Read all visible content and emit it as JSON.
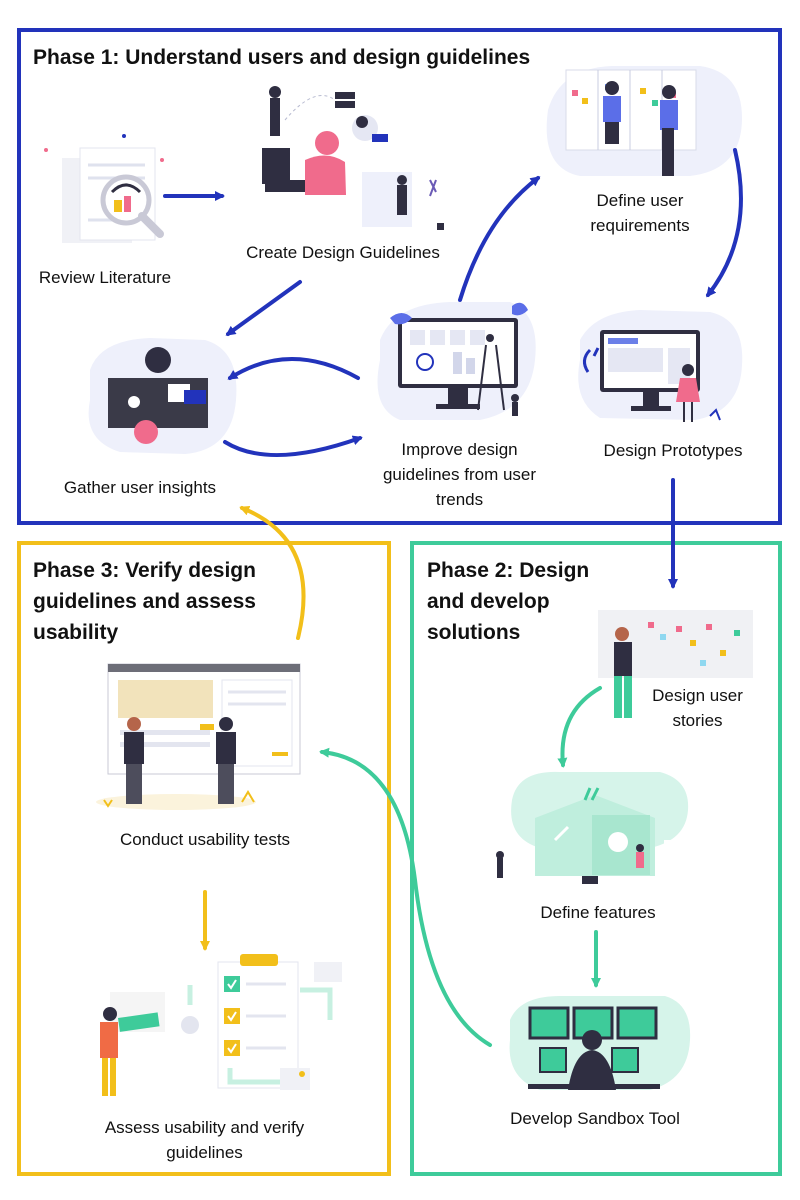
{
  "colors": {
    "phase1": "#2233bb",
    "phase2": "#3ecb9a",
    "phase3": "#f2bf1a",
    "blob": "#eef0fb",
    "pink": "#f06b8c",
    "dark": "#2f2e41"
  },
  "phase1": {
    "title": "Phase 1: Understand users and design guidelines",
    "steps": {
      "review": "Review Literature",
      "create": "Create Design Guidelines",
      "define": "Define user requirements",
      "insights": "Gather user insights",
      "improve": "Improve design guidelines from user trends",
      "prototypes": "Design Prototypes"
    }
  },
  "phase2": {
    "title": "Phase 2: Design and develop solutions",
    "steps": {
      "stories": "Design user stories",
      "features": "Define features",
      "sandbox": "Develop Sandbox Tool"
    }
  },
  "phase3": {
    "title": "Phase 3: Verify design guidelines and assess usability",
    "steps": {
      "usability": "Conduct usability tests",
      "assess": "Assess usability and verify guidelines"
    }
  },
  "illustrations": {
    "review": "literature-search-illustration",
    "create": "designer-at-desk-illustration",
    "define": "team-at-whiteboard-illustration",
    "insights": "meeting-table-illustration",
    "improve": "monitor-with-ladder-illustration",
    "prototypes": "prototype-monitor-illustration",
    "stories": "person-at-sticky-board-illustration",
    "features": "feature-building-illustration",
    "sandbox": "developer-monitors-illustration",
    "usability": "usability-test-illustration",
    "assess": "checklist-illustration"
  }
}
